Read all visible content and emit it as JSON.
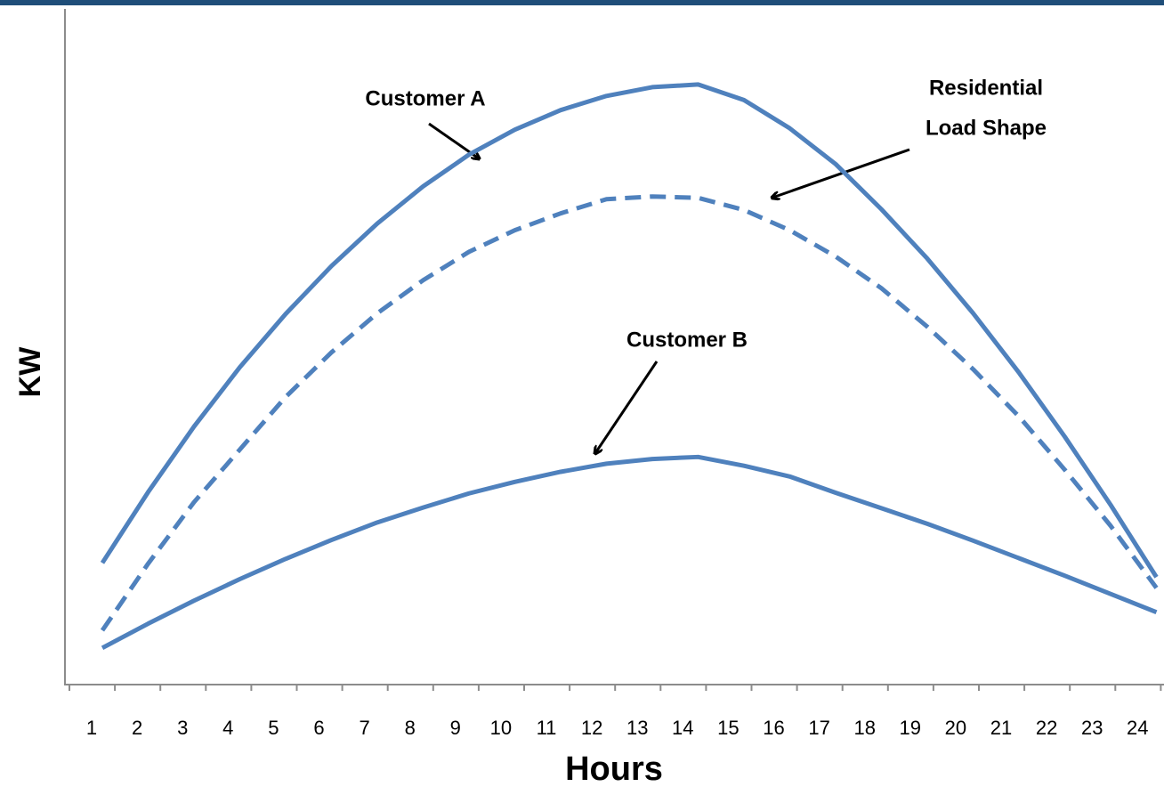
{
  "chart_data": {
    "type": "line",
    "x_label": "Hours",
    "y_label": "KW",
    "categories": [
      "1",
      "2",
      "3",
      "4",
      "5",
      "6",
      "7",
      "8",
      "9",
      "10",
      "11",
      "12",
      "13",
      "14",
      "15",
      "16",
      "17",
      "18",
      "19",
      "20",
      "21",
      "22",
      "23",
      "24"
    ],
    "ylim": [
      0,
      100
    ],
    "series": [
      {
        "color": "#4f81bd",
        "style": "solid",
        "values": [
          17.9,
          28.4,
          38.1,
          46.9,
          54.8,
          61.9,
          68.2,
          73.7,
          78.4,
          82.1,
          85.0,
          87.1,
          88.4,
          88.8,
          86.5,
          82.3,
          77.0,
          70.3,
          63.0,
          54.9,
          46.1,
          36.6,
          26.5,
          15.8
        ]
      },
      {
        "color": "#4f81bd",
        "style": "dashed",
        "values": [
          7.9,
          17.8,
          26.9,
          34.7,
          42.5,
          49.1,
          54.9,
          59.8,
          64.0,
          67.2,
          69.7,
          71.8,
          72.2,
          72.0,
          70.2,
          67.2,
          63.3,
          58.6,
          52.9,
          46.6,
          39.6,
          31.7,
          23.4,
          14.2
        ]
      },
      {
        "color": "#4f81bd",
        "style": "solid",
        "values": [
          5.3,
          8.9,
          12.3,
          15.5,
          18.5,
          21.3,
          23.9,
          26.1,
          28.2,
          29.9,
          31.4,
          32.6,
          33.3,
          33.6,
          32.3,
          30.7,
          28.3,
          26.0,
          23.7,
          21.2,
          18.6,
          16.0,
          13.3,
          10.6
        ]
      }
    ],
    "annotations": [
      {
        "text": [
          "Customer A"
        ]
      },
      {
        "text": [
          "Residential",
          "Load Shape"
        ]
      },
      {
        "text": [
          "Customer B"
        ]
      }
    ]
  }
}
